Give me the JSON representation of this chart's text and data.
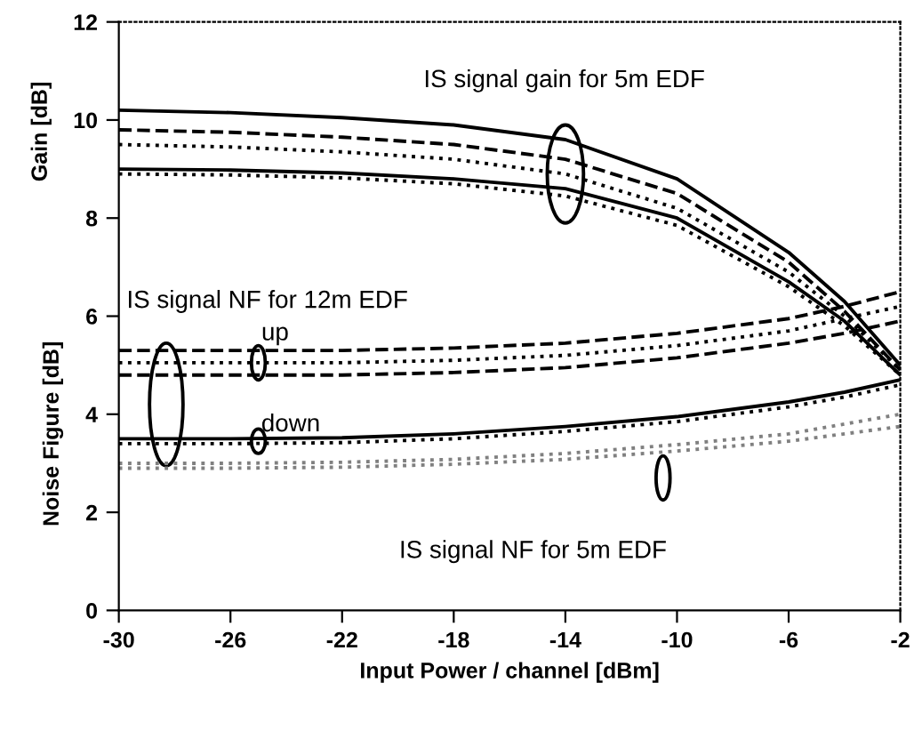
{
  "chart_data": {
    "type": "line",
    "xlabel": "Input Power / channel [dBm]",
    "ylabel": "Noise Figure [dB]",
    "x": [
      -30,
      -26,
      -22,
      -18,
      -14,
      -10,
      -6,
      -4,
      -2
    ],
    "xlim": [
      -30,
      -2
    ],
    "xticks": [
      -30,
      -26,
      -22,
      -18,
      -14,
      -10,
      -6,
      -2
    ],
    "ylim": [
      0,
      12
    ],
    "yticks": [
      0,
      2,
      4,
      6,
      8,
      10,
      12
    ],
    "grid": false,
    "legend": false,
    "marker": "none",
    "series": [
      {
        "color": "#000000",
        "line_style": "solid",
        "values": [
          10.2,
          10.15,
          10.05,
          9.9,
          9.6,
          8.8,
          7.3,
          6.3,
          5.0
        ]
      },
      {
        "color": "#000000",
        "line_style": "dashed",
        "values": [
          9.8,
          9.75,
          9.65,
          9.5,
          9.2,
          8.5,
          7.1,
          6.1,
          4.9
        ]
      },
      {
        "color": "#000000",
        "line_style": "dotted",
        "values": [
          9.5,
          9.45,
          9.35,
          9.2,
          8.9,
          8.2,
          6.9,
          6.0,
          4.9
        ]
      },
      {
        "color": "#000000",
        "line_style": "solid",
        "values": [
          9.0,
          8.98,
          8.92,
          8.8,
          8.6,
          8.0,
          6.7,
          5.9,
          4.8
        ]
      },
      {
        "color": "#000000",
        "line_style": "dotted",
        "values": [
          8.9,
          8.88,
          8.82,
          8.7,
          8.45,
          7.85,
          6.6,
          5.8,
          4.8
        ]
      },
      {
        "color": "#000000",
        "line_style": "dashed",
        "values": [
          5.3,
          5.3,
          5.3,
          5.35,
          5.45,
          5.65,
          5.95,
          6.2,
          6.5
        ]
      },
      {
        "color": "#000000",
        "line_style": "dotted",
        "values": [
          5.05,
          5.05,
          5.05,
          5.1,
          5.2,
          5.4,
          5.7,
          5.95,
          6.2
        ]
      },
      {
        "color": "#000000",
        "line_style": "dashed",
        "values": [
          4.8,
          4.8,
          4.8,
          4.85,
          4.95,
          5.15,
          5.45,
          5.65,
          5.9
        ]
      },
      {
        "color": "#000000",
        "line_style": "solid",
        "values": [
          3.5,
          3.5,
          3.52,
          3.6,
          3.75,
          3.95,
          4.25,
          4.45,
          4.7
        ]
      },
      {
        "color": "#000000",
        "line_style": "dotted",
        "values": [
          3.4,
          3.4,
          3.42,
          3.5,
          3.65,
          3.85,
          4.15,
          4.35,
          4.6
        ]
      },
      {
        "color": "#808080",
        "line_style": "dotted",
        "values": [
          3.0,
          3.0,
          3.02,
          3.08,
          3.2,
          3.38,
          3.6,
          3.8,
          4.0
        ]
      },
      {
        "color": "#808080",
        "line_style": "dotted",
        "values": [
          2.9,
          2.9,
          2.92,
          2.98,
          3.08,
          3.25,
          3.45,
          3.6,
          3.75
        ]
      }
    ],
    "annotations": [
      "IS signal gain for 5m EDF",
      "IS signal NF for 12m EDF",
      "up",
      "down",
      "IS signal NF for 5m EDF",
      "Gain [dB]"
    ]
  }
}
